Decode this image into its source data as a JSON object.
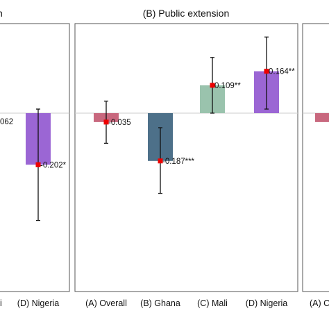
{
  "chart_data": [
    {
      "type": "bar",
      "title": "",
      "categories": [
        "i",
        "(D) Nigeria"
      ],
      "series": [
        {
          "values": [
            null,
            -0.202
          ]
        }
      ],
      "error_bars": [
        null,
        {
          "low": -0.42,
          "high": 0.016
        }
      ],
      "labels": [
        "062",
        "-0.202*"
      ],
      "colors": [
        "#c8687e",
        "#9b66d4"
      ],
      "ylim": [
        -0.7,
        0.35
      ],
      "note": "partially cropped panel on left edge"
    },
    {
      "type": "bar",
      "title": "(B) Public extension",
      "categories": [
        "(A) Overall",
        "(B) Ghana",
        "(C) Mali",
        "(D) Nigeria"
      ],
      "series": [
        {
          "values": [
            -0.035,
            -0.187,
            0.109,
            0.164
          ]
        }
      ],
      "error_bars": [
        {
          "low": -0.118,
          "high": 0.047
        },
        {
          "low": -0.314,
          "high": -0.057
        },
        {
          "low": 0.0,
          "high": 0.218
        },
        {
          "low": 0.016,
          "high": 0.298
        }
      ],
      "labels": [
        "-0.035",
        "-0.187***",
        "0.109**",
        "0.164**"
      ],
      "colors": [
        "#c8687e",
        "#4d7089",
        "#9ac3ad",
        "#9b66d4"
      ],
      "ylim": [
        -0.7,
        0.35
      ]
    },
    {
      "type": "bar",
      "title": "",
      "categories": [
        "(A) C"
      ],
      "series": [
        {
          "values": [
            -0.035
          ]
        }
      ],
      "colors": [
        "#c8687e"
      ],
      "ylim": [
        -0.7,
        0.35
      ],
      "note": "partially cropped panel on right edge"
    }
  ]
}
